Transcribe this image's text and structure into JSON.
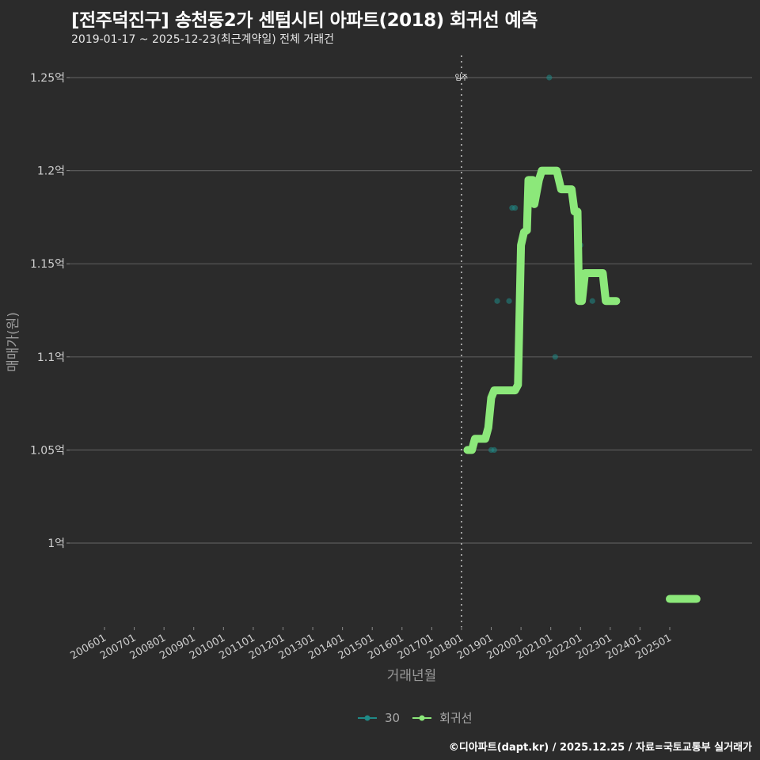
{
  "header": {
    "title": "[전주덕진구] 송천동2가 센텀시티 아파트(2018) 회귀선 예측",
    "subtitle": "2019-01-17 ~ 2025-12-23(최근계약일) 전체 거래건"
  },
  "colors": {
    "background": "#2b2b2b",
    "grid": "#5a5a5a",
    "scatter": "#1f8a87",
    "regression": "#8ce87a",
    "vline": "#bdbdbd"
  },
  "legend": {
    "items": [
      {
        "label": "30",
        "color": "#1f8a87"
      },
      {
        "label": "회귀선",
        "color": "#8ce87a"
      }
    ]
  },
  "footer": {
    "credit": "©디아파트(dapt.kr) / 2025.12.25 / 자료=국토교통부 실거래가"
  },
  "chart_data": {
    "type": "scatter+line",
    "title": "[전주덕진구] 송천동2가 센텀시티 아파트(2018) 회귀선 예측",
    "subtitle": "2019-01-17 ~ 2025-12-23(최근계약일) 전체 거래건",
    "xlabel": "거래년월",
    "ylabel": "매매가(원)",
    "y_unit": "억",
    "ylim": [
      0.955,
      1.262
    ],
    "yticks": [
      {
        "value": 1.0,
        "label": "1억"
      },
      {
        "value": 1.05,
        "label": "1.05억"
      },
      {
        "value": 1.1,
        "label": "1.1억"
      },
      {
        "value": 1.15,
        "label": "1.15억"
      },
      {
        "value": 1.2,
        "label": "1.2억"
      },
      {
        "value": 1.25,
        "label": "1.25억"
      }
    ],
    "xlim": [
      2004.6,
      2027.5
    ],
    "xticks": [
      "200601",
      "200701",
      "200801",
      "200901",
      "201001",
      "201101",
      "201201",
      "201301",
      "201401",
      "201501",
      "201601",
      "201701",
      "201801",
      "201901",
      "202001",
      "202101",
      "202201",
      "202301",
      "202401",
      "202501"
    ],
    "grid": "horizontal",
    "legend_position": "bottom",
    "annotation": {
      "label": "입주",
      "x": 2018.0,
      "style": "dotted vertical line"
    },
    "series": [
      {
        "name": "30",
        "type": "scatter",
        "points": [
          [
            2019.0,
            1.05
          ],
          [
            2019.1,
            1.05
          ],
          [
            2019.2,
            1.13
          ],
          [
            2019.6,
            1.13
          ],
          [
            2019.7,
            1.18
          ],
          [
            2019.8,
            1.18
          ],
          [
            2020.95,
            1.25
          ],
          [
            2021.15,
            1.1
          ],
          [
            2022.0,
            1.16
          ],
          [
            2022.4,
            1.13
          ]
        ]
      },
      {
        "name": "회귀선",
        "type": "line",
        "points": [
          [
            2018.2,
            1.05
          ],
          [
            2018.35,
            1.05
          ],
          [
            2018.45,
            1.056
          ],
          [
            2018.8,
            1.056
          ],
          [
            2018.9,
            1.062
          ],
          [
            2019.0,
            1.078
          ],
          [
            2019.1,
            1.082
          ],
          [
            2019.8,
            1.082
          ],
          [
            2019.9,
            1.085
          ],
          [
            2020.0,
            1.16
          ],
          [
            2020.1,
            1.167
          ],
          [
            2020.2,
            1.168
          ],
          [
            2020.25,
            1.195
          ],
          [
            2020.4,
            1.195
          ],
          [
            2020.45,
            1.182
          ],
          [
            2020.6,
            1.195
          ],
          [
            2020.7,
            1.2
          ],
          [
            2021.2,
            1.2
          ],
          [
            2021.35,
            1.19
          ],
          [
            2021.7,
            1.19
          ],
          [
            2021.8,
            1.178
          ],
          [
            2021.9,
            1.178
          ],
          [
            2021.95,
            1.13
          ],
          [
            2022.05,
            1.13
          ],
          [
            2022.15,
            1.145
          ],
          [
            2022.75,
            1.145
          ],
          [
            2022.85,
            1.13
          ],
          [
            2023.2,
            1.13
          ]
        ],
        "extra_segment": [
          [
            2025.0,
            0.97
          ],
          [
            2025.9,
            0.97
          ]
        ]
      }
    ]
  }
}
